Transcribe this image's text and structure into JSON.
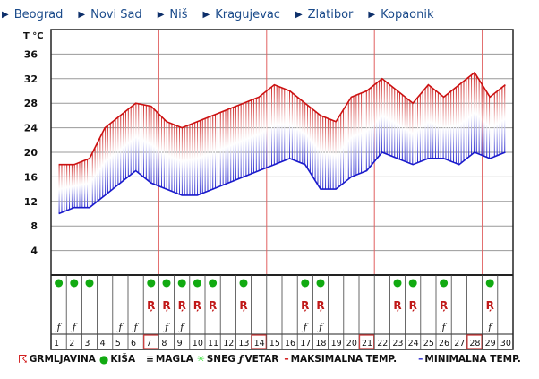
{
  "tabs": [
    "Beograd",
    "Novi Sad",
    "Niš",
    "Kragujevac",
    "Zlatibor",
    "Kopaonik"
  ],
  "chart_data": {
    "type": "line",
    "ylabel": "T °C",
    "yticks": [
      4,
      8,
      12,
      16,
      20,
      24,
      28,
      32,
      36
    ],
    "ylim": [
      0,
      40
    ],
    "days": [
      1,
      2,
      3,
      4,
      5,
      6,
      7,
      8,
      9,
      10,
      11,
      12,
      13,
      14,
      15,
      16,
      17,
      18,
      19,
      20,
      21,
      22,
      23,
      24,
      25,
      26,
      27,
      28,
      29,
      30
    ],
    "highlighted_days": [
      7,
      14,
      21,
      28
    ],
    "series": [
      {
        "name": "MAKSIMALNA TEMP.",
        "color": "#cc1111",
        "values": [
          18,
          18,
          19,
          24,
          26,
          28,
          27.5,
          25,
          24,
          25,
          26,
          27,
          28,
          29,
          31,
          30,
          28,
          26,
          25,
          29,
          30,
          32,
          30,
          28,
          31,
          29,
          31,
          33,
          29,
          31
        ]
      },
      {
        "name": "MINIMALNA TEMP.",
        "color": "#1a1acc",
        "values": [
          10,
          11,
          11,
          13,
          15,
          17,
          15,
          14,
          13,
          13,
          14,
          15,
          16,
          17,
          18,
          19,
          18,
          14,
          14,
          16,
          17,
          20,
          19,
          18,
          19,
          19,
          18,
          20,
          19,
          20
        ]
      }
    ],
    "weather": {
      "kisa": [
        1,
        2,
        3,
        7,
        8,
        9,
        10,
        11,
        13,
        17,
        18,
        23,
        24,
        26,
        29
      ],
      "grmljavina": [
        7,
        8,
        9,
        10,
        11,
        13,
        17,
        18,
        23,
        24,
        26,
        29
      ],
      "vetar": [
        1,
        2,
        5,
        6,
        8,
        9,
        17,
        18,
        26,
        29
      ]
    }
  },
  "legend": {
    "grmljavina": "GRMLJAVINA",
    "kisa": "KIŠA",
    "magla": "MAGLA",
    "sneg": "SNEG",
    "vetar": "VETAR",
    "max": "MAKSIMALNA TEMP.",
    "min": "MINIMALNA TEMP."
  }
}
